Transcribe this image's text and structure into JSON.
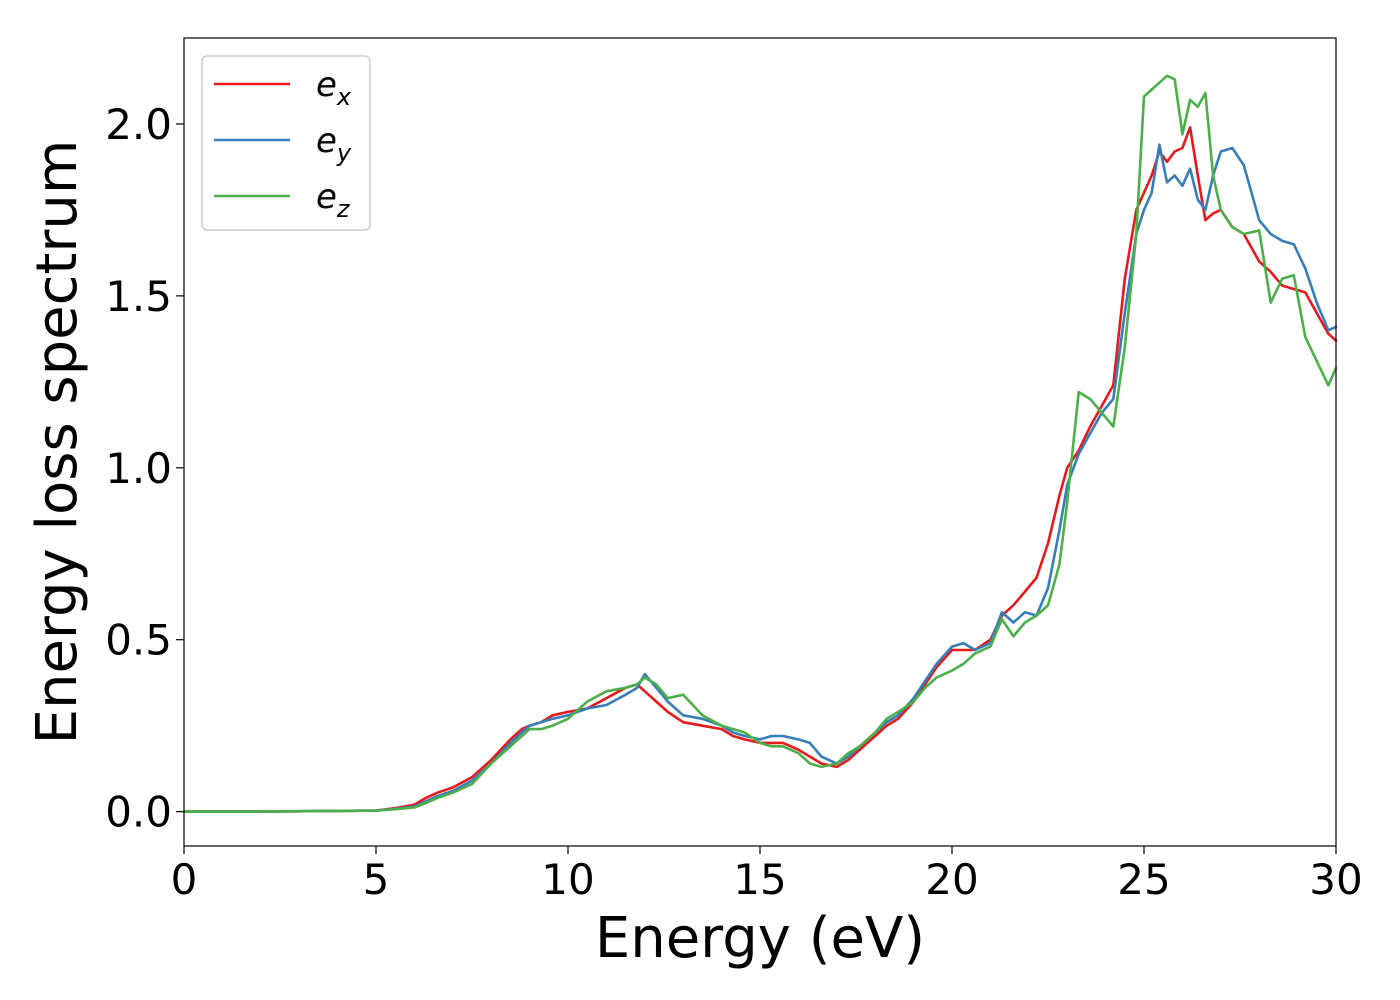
{
  "chart_data": {
    "type": "line",
    "xlabel": "Energy (eV)",
    "ylabel": "Energy loss spectrum",
    "xlim": [
      0,
      30
    ],
    "ylim": [
      -0.1,
      2.25
    ],
    "xticks": [
      0,
      5,
      10,
      15,
      20,
      25,
      30
    ],
    "xtick_labels": [
      "0",
      "5",
      "10",
      "15",
      "20",
      "25",
      "30"
    ],
    "yticks": [
      0.0,
      0.5,
      1.0,
      1.5,
      2.0
    ],
    "ytick_labels": [
      "0.0",
      "0.5",
      "1.0",
      "1.5",
      "2.0"
    ],
    "grid": false,
    "legend_position": "top-left",
    "series": [
      {
        "name": "e_x",
        "label_base": "e",
        "label_sub": "x",
        "color": "#e41a1c",
        "x": [
          0,
          2,
          4,
          5,
          5.5,
          6,
          6.3,
          6.6,
          7,
          7.5,
          8,
          8.5,
          8.8,
          9,
          9.3,
          9.6,
          10,
          10.5,
          11,
          11.5,
          11.8,
          12,
          12.3,
          12.6,
          13,
          13.5,
          14,
          14.3,
          14.6,
          15,
          15.3,
          15.6,
          16,
          16.3,
          16.6,
          17,
          17.3,
          17.6,
          18,
          18.3,
          18.6,
          19,
          19.3,
          19.6,
          20,
          20.3,
          20.6,
          21,
          21.3,
          21.6,
          21.9,
          22.2,
          22.5,
          22.8,
          23,
          23.3,
          23.6,
          23.9,
          24.2,
          24.5,
          24.8,
          25,
          25.2,
          25.4,
          25.6,
          25.8,
          26,
          26.2,
          26.4,
          26.6,
          26.8,
          27,
          27.3,
          27.6,
          28,
          28.3,
          28.6,
          28.9,
          29.2,
          29.5,
          29.8,
          30
        ],
        "y": [
          0.0,
          0.0,
          0.002,
          0.003,
          0.01,
          0.02,
          0.04,
          0.055,
          0.07,
          0.1,
          0.15,
          0.21,
          0.24,
          0.25,
          0.26,
          0.28,
          0.29,
          0.3,
          0.33,
          0.36,
          0.37,
          0.35,
          0.32,
          0.29,
          0.26,
          0.25,
          0.24,
          0.22,
          0.21,
          0.2,
          0.2,
          0.2,
          0.18,
          0.16,
          0.14,
          0.13,
          0.15,
          0.18,
          0.22,
          0.25,
          0.27,
          0.32,
          0.37,
          0.42,
          0.47,
          0.47,
          0.47,
          0.5,
          0.57,
          0.6,
          0.64,
          0.68,
          0.78,
          0.92,
          1.0,
          1.05,
          1.12,
          1.18,
          1.24,
          1.55,
          1.75,
          1.8,
          1.85,
          1.92,
          1.89,
          1.92,
          1.93,
          1.99,
          1.85,
          1.72,
          1.74,
          1.75,
          1.7,
          1.68,
          1.6,
          1.57,
          1.53,
          1.52,
          1.51,
          1.45,
          1.39,
          1.37
        ]
      },
      {
        "name": "e_y",
        "label_base": "e",
        "label_sub": "y",
        "color": "#377eb8",
        "x": [
          0,
          2,
          4,
          5,
          5.5,
          6,
          6.3,
          6.6,
          7,
          7.5,
          8,
          8.5,
          8.8,
          9,
          9.3,
          9.6,
          10,
          10.5,
          11,
          11.5,
          11.8,
          12,
          12.3,
          12.6,
          13,
          13.5,
          14,
          14.3,
          14.6,
          15,
          15.3,
          15.6,
          16,
          16.3,
          16.6,
          17,
          17.3,
          17.6,
          18,
          18.3,
          18.6,
          19,
          19.3,
          19.6,
          20,
          20.3,
          20.6,
          21,
          21.3,
          21.6,
          21.9,
          22.2,
          22.5,
          22.8,
          23,
          23.3,
          23.6,
          23.9,
          24.2,
          24.5,
          24.8,
          25,
          25.2,
          25.4,
          25.6,
          25.8,
          26,
          26.2,
          26.4,
          26.6,
          26.8,
          27,
          27.3,
          27.6,
          28,
          28.3,
          28.6,
          28.9,
          29.2,
          29.5,
          29.8,
          30
        ],
        "y": [
          0.0,
          0.0,
          0.002,
          0.003,
          0.008,
          0.015,
          0.03,
          0.045,
          0.06,
          0.09,
          0.14,
          0.2,
          0.23,
          0.25,
          0.26,
          0.27,
          0.28,
          0.3,
          0.31,
          0.34,
          0.36,
          0.4,
          0.36,
          0.32,
          0.28,
          0.27,
          0.25,
          0.23,
          0.22,
          0.21,
          0.22,
          0.22,
          0.21,
          0.2,
          0.16,
          0.14,
          0.16,
          0.19,
          0.23,
          0.26,
          0.28,
          0.33,
          0.38,
          0.43,
          0.48,
          0.49,
          0.47,
          0.49,
          0.58,
          0.55,
          0.58,
          0.57,
          0.65,
          0.82,
          0.95,
          1.04,
          1.1,
          1.16,
          1.2,
          1.45,
          1.68,
          1.75,
          1.8,
          1.94,
          1.83,
          1.85,
          1.82,
          1.87,
          1.78,
          1.75,
          1.85,
          1.92,
          1.93,
          1.88,
          1.72,
          1.68,
          1.66,
          1.65,
          1.58,
          1.48,
          1.4,
          1.41
        ]
      },
      {
        "name": "e_z",
        "label_base": "e",
        "label_sub": "z",
        "color": "#4daf4a",
        "x": [
          0,
          2,
          4,
          5,
          5.5,
          6,
          6.3,
          6.6,
          7,
          7.5,
          8,
          8.5,
          8.8,
          9,
          9.3,
          9.6,
          10,
          10.5,
          11,
          11.5,
          11.8,
          12,
          12.3,
          12.6,
          13,
          13.5,
          14,
          14.3,
          14.6,
          15,
          15.3,
          15.6,
          16,
          16.3,
          16.6,
          17,
          17.3,
          17.6,
          18,
          18.3,
          18.6,
          19,
          19.3,
          19.6,
          20,
          20.3,
          20.6,
          21,
          21.3,
          21.6,
          21.9,
          22.2,
          22.5,
          22.8,
          23,
          23.3,
          23.6,
          23.9,
          24.2,
          24.5,
          24.8,
          25,
          25.2,
          25.4,
          25.6,
          25.8,
          26,
          26.2,
          26.4,
          26.6,
          26.8,
          27,
          27.3,
          27.6,
          28,
          28.3,
          28.6,
          28.9,
          29.2,
          29.5,
          29.8,
          30
        ],
        "y": [
          0.0,
          0.0,
          0.002,
          0.003,
          0.007,
          0.012,
          0.025,
          0.04,
          0.055,
          0.08,
          0.14,
          0.19,
          0.22,
          0.24,
          0.24,
          0.25,
          0.27,
          0.32,
          0.35,
          0.36,
          0.37,
          0.39,
          0.37,
          0.33,
          0.34,
          0.28,
          0.25,
          0.24,
          0.23,
          0.2,
          0.19,
          0.19,
          0.17,
          0.14,
          0.13,
          0.14,
          0.17,
          0.19,
          0.23,
          0.27,
          0.29,
          0.32,
          0.36,
          0.39,
          0.41,
          0.43,
          0.46,
          0.48,
          0.56,
          0.51,
          0.55,
          0.57,
          0.6,
          0.72,
          0.9,
          1.22,
          1.2,
          1.16,
          1.12,
          1.35,
          1.68,
          2.08,
          2.1,
          2.12,
          2.14,
          2.13,
          1.97,
          2.07,
          2.05,
          2.09,
          1.85,
          1.75,
          1.7,
          1.68,
          1.69,
          1.48,
          1.55,
          1.56,
          1.38,
          1.31,
          1.24,
          1.29
        ]
      }
    ]
  }
}
